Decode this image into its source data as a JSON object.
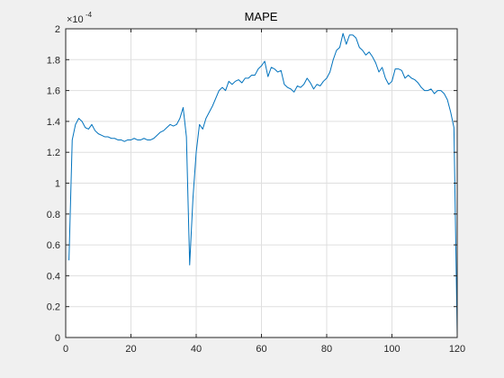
{
  "chart_data": {
    "type": "line",
    "title": "MAPE",
    "xlabel": "",
    "ylabel": "",
    "y_exponent_base": "×10",
    "y_exponent_power": "-4",
    "xlim": [
      0,
      120
    ],
    "ylim": [
      0,
      2
    ],
    "x_ticks": [
      0,
      20,
      40,
      60,
      80,
      100,
      120
    ],
    "x_tick_labels": [
      "0",
      "20",
      "40",
      "60",
      "80",
      "100",
      "120"
    ],
    "y_ticks": [
      0,
      0.2,
      0.4,
      0.6,
      0.8,
      1,
      1.2,
      1.4,
      1.6,
      1.8,
      2
    ],
    "y_tick_labels": [
      "0",
      "0.2",
      "0.4",
      "0.6",
      "0.8",
      "1",
      "1.2",
      "1.4",
      "1.6",
      "1.8",
      "2"
    ],
    "grid": true,
    "series": [
      {
        "color": "#0072bd",
        "x": [
          1,
          2,
          3,
          4,
          5,
          6,
          7,
          8,
          9,
          10,
          11,
          12,
          13,
          14,
          15,
          16,
          17,
          18,
          19,
          20,
          21,
          22,
          23,
          24,
          25,
          26,
          27,
          28,
          29,
          30,
          31,
          32,
          33,
          34,
          35,
          36,
          37,
          38,
          39,
          40,
          41,
          42,
          43,
          44,
          45,
          46,
          47,
          48,
          49,
          50,
          51,
          52,
          53,
          54,
          55,
          56,
          57,
          58,
          59,
          60,
          61,
          62,
          63,
          64,
          65,
          66,
          67,
          68,
          69,
          70,
          71,
          72,
          73,
          74,
          75,
          76,
          77,
          78,
          79,
          80,
          81,
          82,
          83,
          84,
          85,
          86,
          87,
          88,
          89,
          90,
          91,
          92,
          93,
          94,
          95,
          96,
          97,
          98,
          99,
          100,
          101,
          102,
          103,
          104,
          105,
          106,
          107,
          108,
          109,
          110,
          111,
          112,
          113,
          114,
          115,
          116,
          117,
          118,
          119,
          120
        ],
        "y": [
          0.5,
          1.28,
          1.38,
          1.42,
          1.4,
          1.36,
          1.35,
          1.38,
          1.34,
          1.32,
          1.31,
          1.3,
          1.3,
          1.29,
          1.29,
          1.28,
          1.28,
          1.27,
          1.28,
          1.28,
          1.29,
          1.28,
          1.28,
          1.29,
          1.28,
          1.28,
          1.29,
          1.31,
          1.33,
          1.34,
          1.36,
          1.38,
          1.37,
          1.38,
          1.42,
          1.49,
          1.3,
          0.47,
          0.9,
          1.2,
          1.38,
          1.35,
          1.42,
          1.46,
          1.5,
          1.55,
          1.6,
          1.62,
          1.6,
          1.66,
          1.64,
          1.66,
          1.67,
          1.65,
          1.68,
          1.68,
          1.7,
          1.7,
          1.74,
          1.76,
          1.79,
          1.69,
          1.75,
          1.74,
          1.72,
          1.73,
          1.64,
          1.62,
          1.61,
          1.59,
          1.63,
          1.62,
          1.64,
          1.68,
          1.65,
          1.61,
          1.64,
          1.63,
          1.66,
          1.68,
          1.72,
          1.8,
          1.86,
          1.88,
          1.97,
          1.9,
          1.96,
          1.96,
          1.94,
          1.88,
          1.86,
          1.83,
          1.85,
          1.82,
          1.78,
          1.72,
          1.75,
          1.68,
          1.64,
          1.66,
          1.74,
          1.74,
          1.73,
          1.68,
          1.7,
          1.68,
          1.67,
          1.65,
          1.62,
          1.6,
          1.6,
          1.61,
          1.58,
          1.6,
          1.6,
          1.58,
          1.54,
          1.46,
          1.36,
          0.02
        ]
      }
    ]
  }
}
